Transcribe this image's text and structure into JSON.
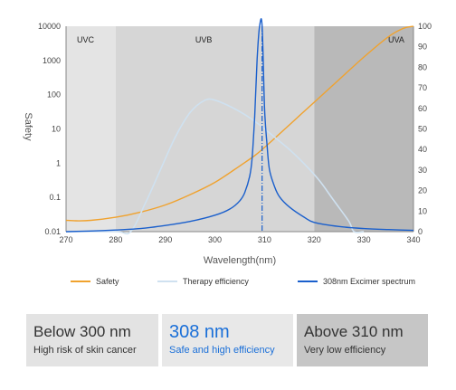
{
  "chart_data": {
    "type": "line",
    "xlabel": "Wavelength(nm)",
    "ylabel_left": "Safety",
    "xlim": [
      270,
      340
    ],
    "x_ticks": [
      270,
      280,
      290,
      300,
      310,
      320,
      330,
      340
    ],
    "y_left_scale": "log",
    "y_left_ticks": [
      "0.01",
      "0.1",
      "1",
      "10",
      "100",
      "1000",
      "10000"
    ],
    "y_left_lim": [
      0.01,
      10000
    ],
    "y_right_ticks": [
      0,
      10,
      20,
      30,
      40,
      50,
      60,
      70,
      80,
      90,
      100
    ],
    "y_right_lim": [
      0,
      100
    ],
    "regions": [
      {
        "label": "UVC",
        "from": 270,
        "to": 280,
        "color": "#e4e4e4"
      },
      {
        "label": "UVB",
        "from": 280,
        "to": 320,
        "color": "#d6d6d6"
      },
      {
        "label": "UVA",
        "from": 320,
        "to": 340,
        "color": "#b9b9b9"
      }
    ],
    "series": [
      {
        "name": "Safety",
        "axis": "right",
        "color": "#f0a22e",
        "x": [
          270,
          272,
          275,
          280,
          285,
          290,
          295,
          300,
          305,
          308,
          310,
          315,
          320,
          325,
          330,
          335,
          338,
          340
        ],
        "y": [
          5.5,
          5.3,
          5.5,
          7,
          9.5,
          13,
          18,
          24,
          32,
          37,
          41,
          52,
          63,
          74,
          85,
          95,
          99,
          100
        ]
      },
      {
        "name": "Therapy efficiency",
        "axis": "right",
        "color": "#cfe1f0",
        "x": [
          270,
          280,
          283,
          286,
          289,
          292,
          295,
          298,
          300,
          303,
          306,
          309,
          312,
          315,
          318,
          321,
          324,
          327,
          328,
          330
        ],
        "y": [
          0,
          0,
          0,
          14,
          30,
          46,
          58,
          64,
          64,
          61,
          57,
          52,
          46,
          40,
          33,
          25,
          15,
          5,
          0,
          0
        ]
      },
      {
        "name": "308nm Excimer spectrum",
        "axis": "right",
        "color": "#1a5fcc",
        "x": [
          270,
          275,
          280,
          285,
          290,
          295,
          300,
          303,
          305,
          306,
          307,
          307.5,
          308,
          308.5,
          309,
          309.5,
          310,
          310.5,
          311,
          312,
          313,
          315,
          318,
          320,
          325,
          330,
          335,
          340
        ],
        "y": [
          0,
          0.3,
          0.8,
          1.5,
          3,
          5,
          8,
          11,
          15,
          19,
          27,
          36,
          56,
          84,
          100,
          100,
          60,
          42,
          30,
          22,
          17,
          12,
          7,
          4.5,
          2.5,
          1.5,
          1,
          0.6
        ]
      }
    ],
    "annotations": [
      {
        "type": "dash-dot vertical line",
        "x": 309.5,
        "color": "#1a5fcc"
      }
    ]
  },
  "legend": {
    "safety_label": "Safety",
    "therapy_label": "Therapy efficiency",
    "excimer_label": "308nm Excimer spectrum"
  },
  "cards": {
    "below": {
      "title": "Below 300 nm",
      "subtitle": "High risk of skin cancer"
    },
    "mid": {
      "title": "308 nm",
      "subtitle": "Safe and high efficiency"
    },
    "above": {
      "title": "Above 310 nm",
      "subtitle": "Very low efficiency"
    }
  }
}
